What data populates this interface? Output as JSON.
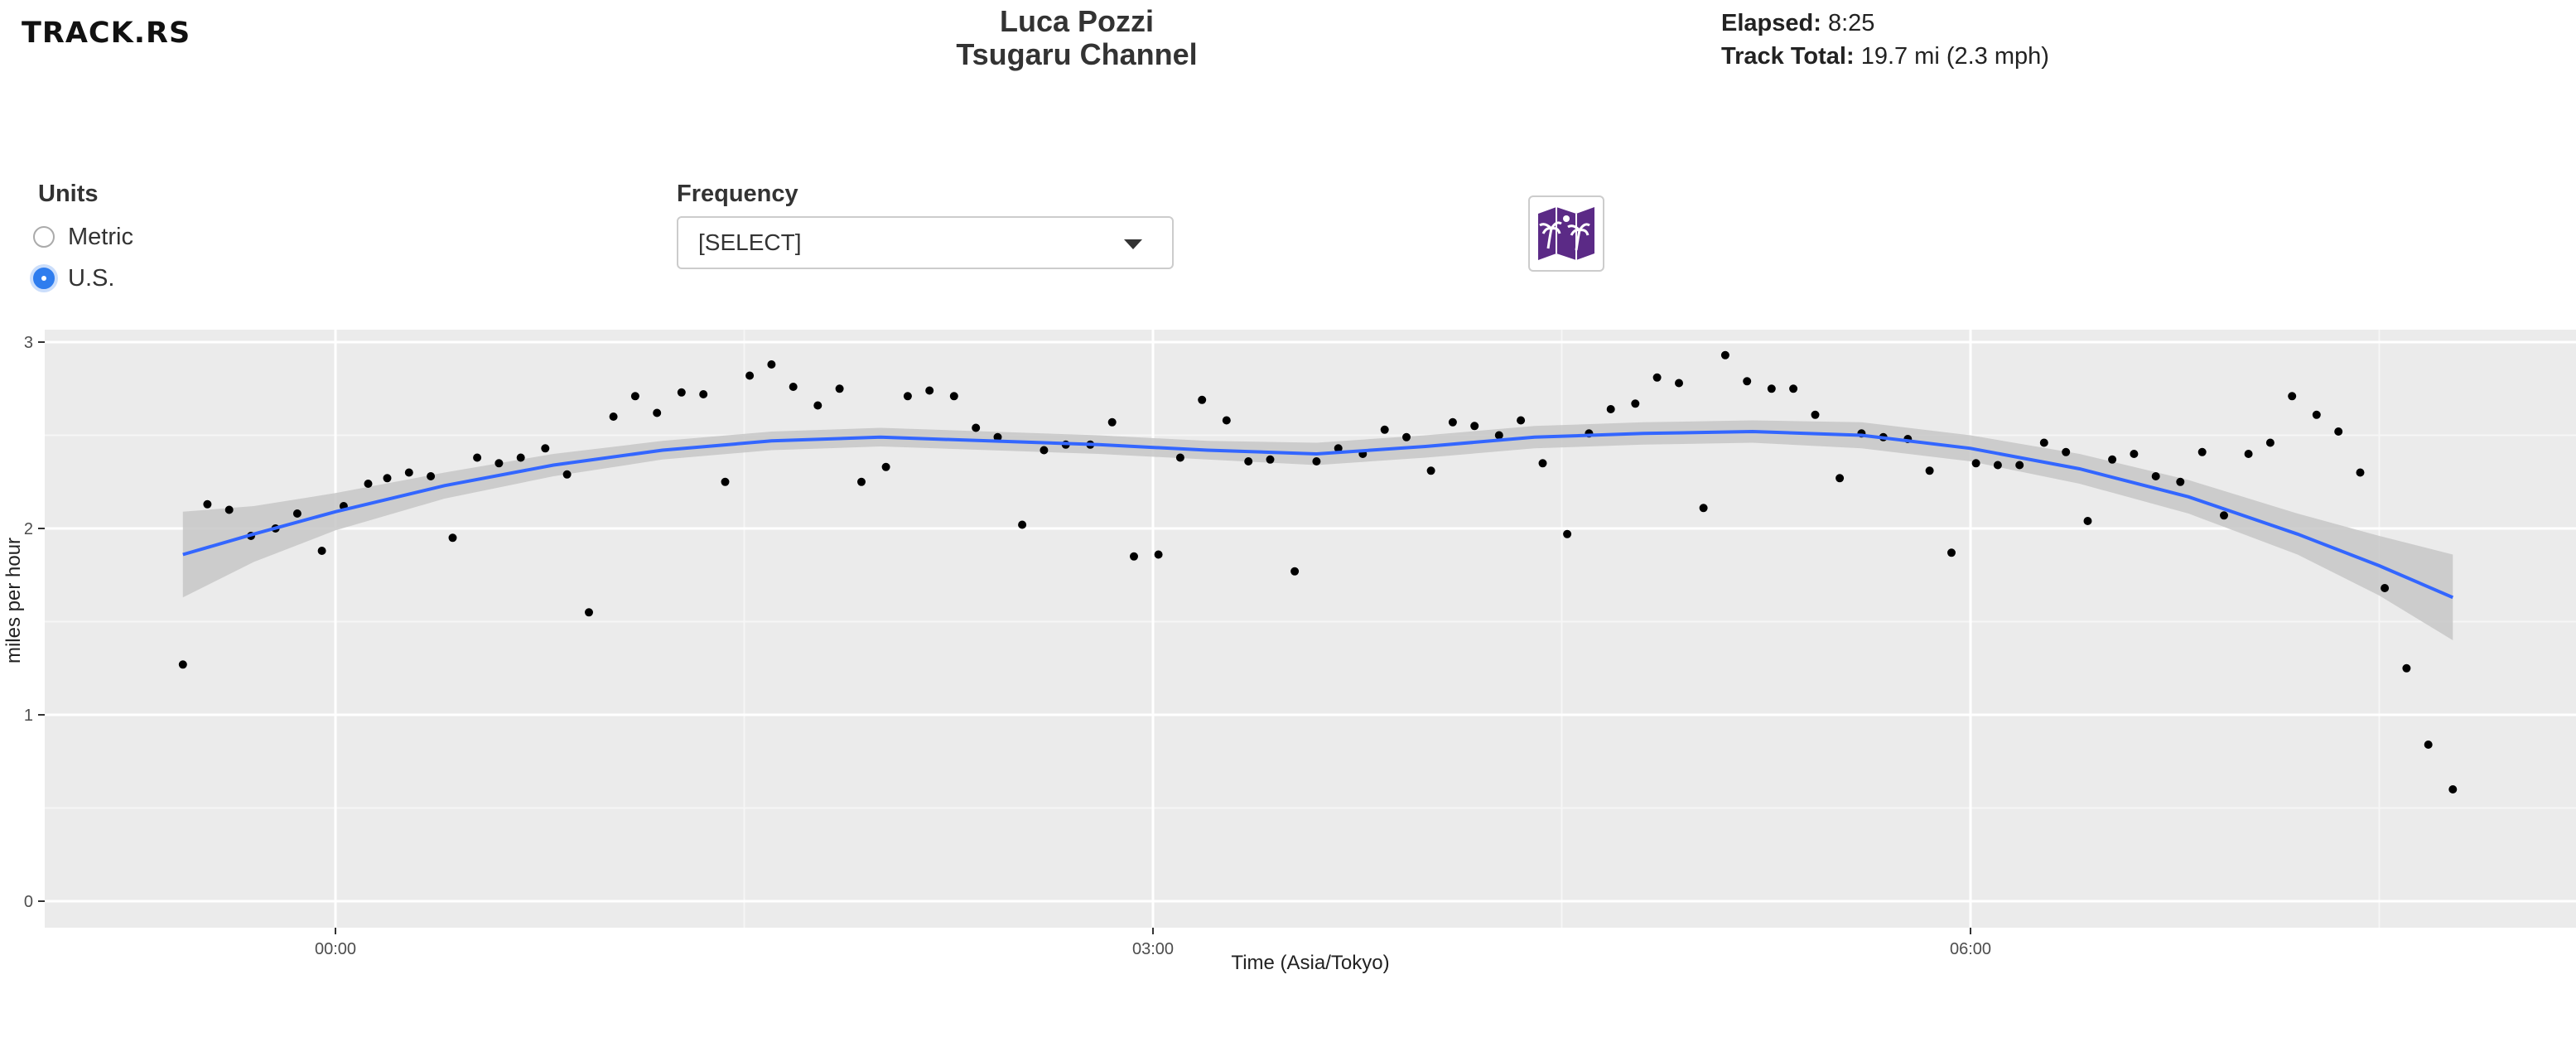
{
  "header": {
    "logo": "TRACK.RS",
    "rider_name": "Luca Pozzi",
    "route_name": "Tsugaru Channel",
    "elapsed_label": "Elapsed:",
    "elapsed_value": "8:25",
    "total_label": "Track Total:",
    "total_value": "19.7 mi (2.3 mph)"
  },
  "controls": {
    "units_label": "Units",
    "units_options": [
      "Metric",
      "U.S."
    ],
    "units_selected": "U.S.",
    "frequency_label": "Frequency",
    "frequency_value": "[SELECT]",
    "map_icon": "palm-map-icon"
  },
  "colors": {
    "panel": "#ebebeb",
    "trend": "#3366ff",
    "band": "#c7c7c7",
    "point": "#000000",
    "map_icon": "#5b2a86"
  },
  "chart_data": {
    "type": "scatter",
    "xlabel": "Time (Asia/Tokyo)",
    "ylabel": "miles per hour",
    "x_unit": "hours",
    "xlim": [
      -1.062,
      8.182
    ],
    "ylim": [
      -0.15,
      3.05
    ],
    "x_ticks": [
      0,
      3,
      6
    ],
    "x_tick_labels": [
      "00:00",
      "03:00",
      "06:00"
    ],
    "y_ticks": [
      0,
      1,
      2,
      3
    ],
    "y_tick_labels": [
      "0",
      "1",
      "2",
      "3"
    ],
    "grid": true,
    "points": [
      [
        -0.56,
        1.27
      ],
      [
        -0.47,
        2.13
      ],
      [
        -0.39,
        2.1
      ],
      [
        -0.31,
        1.96
      ],
      [
        -0.22,
        2.0
      ],
      [
        -0.14,
        2.08
      ],
      [
        -0.05,
        1.88
      ],
      [
        0.03,
        2.12
      ],
      [
        0.12,
        2.24
      ],
      [
        0.19,
        2.27
      ],
      [
        0.27,
        2.3
      ],
      [
        0.35,
        2.28
      ],
      [
        0.43,
        1.95
      ],
      [
        0.52,
        2.38
      ],
      [
        0.6,
        2.35
      ],
      [
        0.68,
        2.38
      ],
      [
        0.77,
        2.43
      ],
      [
        0.85,
        2.29
      ],
      [
        0.93,
        1.55
      ],
      [
        1.02,
        2.6
      ],
      [
        1.1,
        2.71
      ],
      [
        1.18,
        2.62
      ],
      [
        1.27,
        2.73
      ],
      [
        1.35,
        2.72
      ],
      [
        1.43,
        2.25
      ],
      [
        1.52,
        2.82
      ],
      [
        1.6,
        2.88
      ],
      [
        1.68,
        2.76
      ],
      [
        1.77,
        2.66
      ],
      [
        1.85,
        2.75
      ],
      [
        1.93,
        2.25
      ],
      [
        2.02,
        2.33
      ],
      [
        2.1,
        2.71
      ],
      [
        2.18,
        2.74
      ],
      [
        2.27,
        2.71
      ],
      [
        2.35,
        2.54
      ],
      [
        2.43,
        2.49
      ],
      [
        2.52,
        2.02
      ],
      [
        2.6,
        2.42
      ],
      [
        2.68,
        2.45
      ],
      [
        2.77,
        2.45
      ],
      [
        2.85,
        2.57
      ],
      [
        2.93,
        1.85
      ],
      [
        3.02,
        1.86
      ],
      [
        3.1,
        2.38
      ],
      [
        3.18,
        2.69
      ],
      [
        3.27,
        2.58
      ],
      [
        3.35,
        2.36
      ],
      [
        3.43,
        2.37
      ],
      [
        3.52,
        1.77
      ],
      [
        3.6,
        2.36
      ],
      [
        3.68,
        2.43
      ],
      [
        3.77,
        2.4
      ],
      [
        3.85,
        2.53
      ],
      [
        3.93,
        2.49
      ],
      [
        4.02,
        2.31
      ],
      [
        4.1,
        2.57
      ],
      [
        4.18,
        2.55
      ],
      [
        4.27,
        2.5
      ],
      [
        4.35,
        2.58
      ],
      [
        4.43,
        2.35
      ],
      [
        4.52,
        1.97
      ],
      [
        4.6,
        2.51
      ],
      [
        4.68,
        2.64
      ],
      [
        4.77,
        2.67
      ],
      [
        4.85,
        2.81
      ],
      [
        4.93,
        2.78
      ],
      [
        5.02,
        2.11
      ],
      [
        5.1,
        2.93
      ],
      [
        5.18,
        2.79
      ],
      [
        5.27,
        2.75
      ],
      [
        5.35,
        2.75
      ],
      [
        5.43,
        2.61
      ],
      [
        5.52,
        2.27
      ],
      [
        5.6,
        2.51
      ],
      [
        5.68,
        2.49
      ],
      [
        5.77,
        2.48
      ],
      [
        5.85,
        2.31
      ],
      [
        5.93,
        1.87
      ],
      [
        6.02,
        2.35
      ],
      [
        6.1,
        2.34
      ],
      [
        6.18,
        2.34
      ],
      [
        6.27,
        2.46
      ],
      [
        6.35,
        2.41
      ],
      [
        6.43,
        2.04
      ],
      [
        6.52,
        2.37
      ],
      [
        6.6,
        2.4
      ],
      [
        6.68,
        2.28
      ],
      [
        6.77,
        2.25
      ],
      [
        6.85,
        2.41
      ],
      [
        6.93,
        2.07
      ],
      [
        7.02,
        2.4
      ],
      [
        7.1,
        2.46
      ],
      [
        7.18,
        2.71
      ],
      [
        7.27,
        2.61
      ],
      [
        7.35,
        2.52
      ],
      [
        7.43,
        2.3
      ],
      [
        7.52,
        1.68
      ],
      [
        7.6,
        1.25
      ],
      [
        7.68,
        0.84
      ],
      [
        7.77,
        0.6
      ]
    ],
    "trend": {
      "x": [
        -0.56,
        -0.3,
        0,
        0.4,
        0.8,
        1.2,
        1.6,
        2.0,
        2.4,
        2.8,
        3.2,
        3.6,
        4.0,
        4.4,
        4.8,
        5.2,
        5.6,
        6.0,
        6.4,
        6.8,
        7.2,
        7.5,
        7.77
      ],
      "y": [
        1.86,
        1.97,
        2.09,
        2.23,
        2.34,
        2.42,
        2.47,
        2.49,
        2.47,
        2.45,
        2.42,
        2.4,
        2.44,
        2.49,
        2.51,
        2.52,
        2.5,
        2.43,
        2.32,
        2.17,
        1.97,
        1.8,
        1.63
      ],
      "band_low": [
        1.63,
        1.82,
        1.99,
        2.16,
        2.28,
        2.37,
        2.42,
        2.44,
        2.42,
        2.4,
        2.37,
        2.34,
        2.38,
        2.43,
        2.45,
        2.46,
        2.43,
        2.36,
        2.24,
        2.08,
        1.86,
        1.64,
        1.4
      ],
      "band_high": [
        2.09,
        2.12,
        2.19,
        2.3,
        2.4,
        2.47,
        2.52,
        2.54,
        2.52,
        2.5,
        2.47,
        2.46,
        2.5,
        2.55,
        2.57,
        2.58,
        2.57,
        2.5,
        2.4,
        2.26,
        2.08,
        1.96,
        1.86
      ]
    }
  }
}
